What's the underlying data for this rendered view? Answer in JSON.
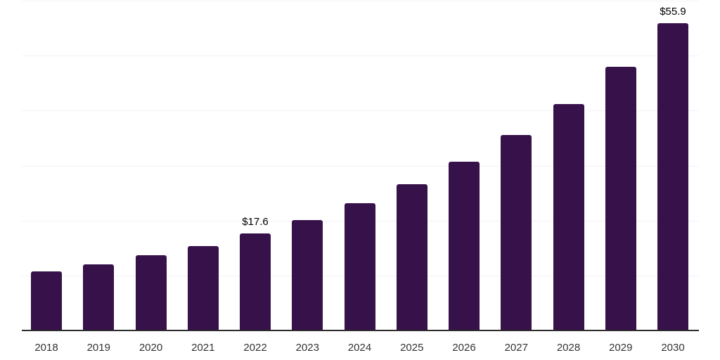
{
  "chart_data": {
    "type": "bar",
    "title": "",
    "xlabel": "",
    "ylabel": "",
    "categories": [
      "2018",
      "2019",
      "2020",
      "2021",
      "2022",
      "2023",
      "2024",
      "2025",
      "2026",
      "2027",
      "2028",
      "2029",
      "2030"
    ],
    "values": [
      10.7,
      12.0,
      13.7,
      15.4,
      17.6,
      20.1,
      23.1,
      26.6,
      30.7,
      35.6,
      41.2,
      48.0,
      55.9
    ],
    "data_labels": [
      {
        "category": "2022",
        "text": "$17.6"
      },
      {
        "category": "2030",
        "text": "$55.9"
      }
    ],
    "ylim": [
      0,
      60
    ],
    "gridline_step": 10,
    "grid": true,
    "legend": false,
    "y_tick_labels_visible": false,
    "colors": {
      "bar": "#36114A",
      "axis": "#2d2d2d",
      "gridline": "#f2f2f2",
      "tick_label": "#333333",
      "data_label": "#000000",
      "background": "#ffffff"
    }
  }
}
